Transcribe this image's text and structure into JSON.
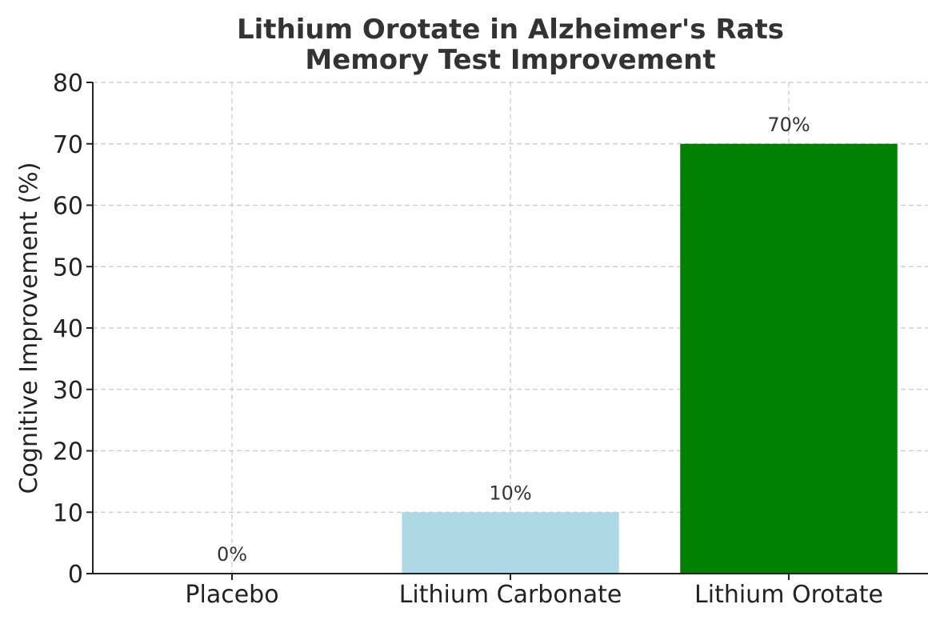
{
  "chart_data": {
    "type": "bar",
    "title_lines": [
      "Lithium Orotate in Alzheimer's Rats",
      "Memory Test Improvement"
    ],
    "xlabel": "",
    "ylabel": "Cognitive Improvement (%)",
    "categories": [
      "Placebo",
      "Lithium Carbonate",
      "Lithium Orotate"
    ],
    "values": [
      0,
      10,
      70
    ],
    "data_labels": [
      "0%",
      "10%",
      "70%"
    ],
    "colors": [
      "#808080",
      "#add8e6",
      "#008000"
    ],
    "ylim": [
      0,
      80
    ],
    "yticks": [
      0,
      10,
      20,
      30,
      40,
      50,
      60,
      70,
      80
    ],
    "ytick_labels": [
      "0",
      "10",
      "20",
      "30",
      "40",
      "50",
      "60",
      "70",
      "80"
    ],
    "grid": true,
    "legend": "none"
  }
}
